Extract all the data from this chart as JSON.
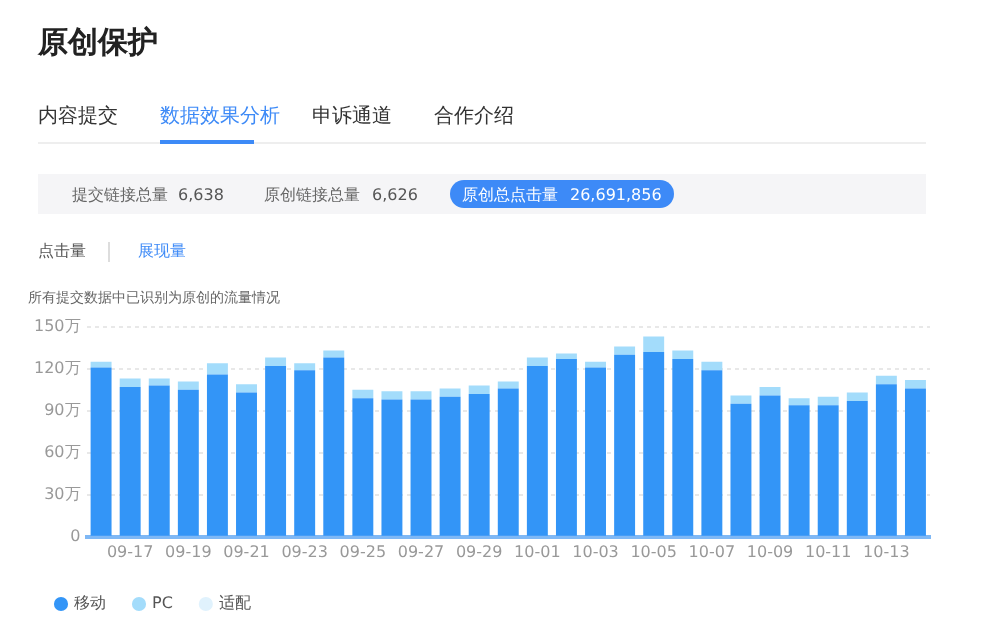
{
  "chart_data": {
    "type": "bar",
    "title": "原创保护",
    "subtitle": "所有提交数据中已识别为原创的流量情况",
    "annotations": [
      "内容提交",
      "数据效果分析",
      "申诉通道",
      "合作介绍",
      "提交链接总量",
      "6,638",
      "原创链接总量",
      "6,626",
      "原创总点击量",
      "26,691,856",
      "点击量",
      "展现量"
    ],
    "categories": [
      null,
      "09-17",
      null,
      "09-19",
      null,
      "09-21",
      null,
      "09-23",
      null,
      "09-25",
      null,
      "09-27",
      null,
      "09-29",
      null,
      "10-01",
      null,
      "10-03",
      null,
      "10-05",
      null,
      "10-07",
      null,
      "10-09",
      null,
      "10-11",
      null,
      "10-13",
      null
    ],
    "series": [
      {
        "name": "移动",
        "color": "#3395f7",
        "values": [
          121,
          107,
          108,
          105,
          116,
          103,
          122,
          119,
          128,
          99,
          98,
          98,
          100,
          102,
          106,
          122,
          127,
          121,
          130,
          132,
          127,
          119,
          95,
          101,
          94,
          94,
          97,
          109,
          106
        ]
      },
      {
        "name": "PC",
        "color": "#a3dcfb",
        "values": [
          4,
          6,
          5,
          6,
          8,
          6,
          6,
          5,
          5,
          6,
          6,
          6,
          6,
          6,
          5,
          6,
          4,
          4,
          6,
          11,
          6,
          6,
          6,
          6,
          5,
          6,
          6,
          6,
          6
        ]
      },
      {
        "name": "适配",
        "color": "#e0f2fd",
        "values": [
          0,
          0,
          0,
          0,
          0,
          0,
          0,
          0,
          0,
          0,
          0,
          0,
          0,
          0,
          0,
          0,
          0,
          0,
          0,
          0,
          0,
          0,
          0,
          0,
          0,
          0,
          0,
          0,
          0
        ]
      }
    ],
    "stacked": true,
    "ylim": [
      0,
      150
    ],
    "yticks": [
      0,
      {
        "value": 30,
        "label": "30万"
      },
      {
        "value": 60,
        "label": "60万"
      },
      {
        "value": 90,
        "label": "90万"
      },
      {
        "value": 120,
        "label": "120万"
      },
      {
        "value": 150,
        "label": "150万"
      }
    ],
    "grid": "y",
    "legend": "bottom left"
  }
}
